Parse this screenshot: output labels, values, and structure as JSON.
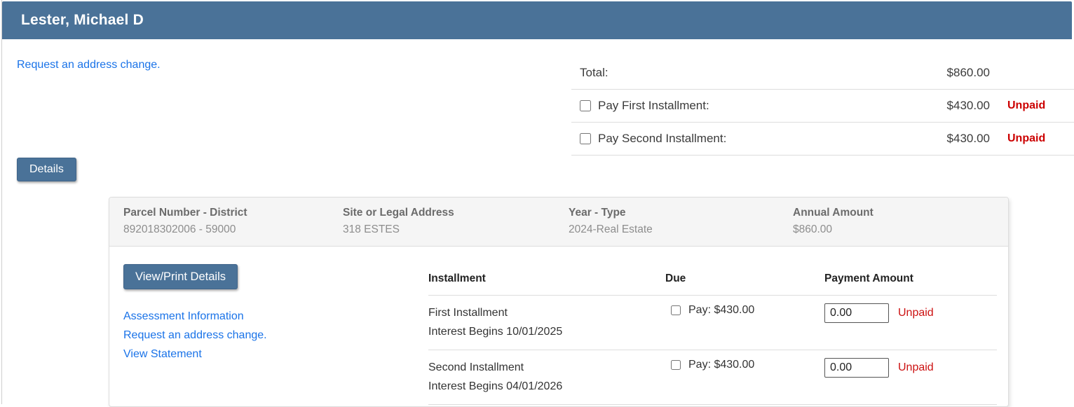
{
  "page": {
    "title": "Lester, Michael D",
    "address_change_link": "Request an address change.",
    "details_button": "Details"
  },
  "totals": {
    "rows": [
      {
        "label": "Total:",
        "amount": "$860.00",
        "status": ""
      },
      {
        "label": "Pay First Installment:",
        "amount": "$430.00",
        "status": "Unpaid",
        "checkbox_checked": false
      },
      {
        "label": "Pay Second Installment:",
        "amount": "$430.00",
        "status": "Unpaid",
        "checkbox_checked": false
      }
    ]
  },
  "parcel": {
    "columns": [
      {
        "label": "Parcel Number - District",
        "value": "892018302006 - 59000"
      },
      {
        "label": "Site or Legal Address",
        "value": "318 ESTES"
      },
      {
        "label": "Year - Type",
        "value": "2024-Real Estate"
      },
      {
        "label": "Annual Amount",
        "value": "$860.00"
      }
    ],
    "view_print_button": "View/Print Details",
    "links": [
      "Assessment Information",
      "Request an address change.",
      "View Statement"
    ]
  },
  "installments": {
    "headers": [
      "Installment",
      "Due",
      "Payment Amount"
    ],
    "rows": [
      {
        "name": "First Installment",
        "interest": "Interest Begins 10/01/2025",
        "due": "Pay: $430.00",
        "payment_value": "0.00",
        "status": "Unpaid",
        "checkbox_checked": false
      },
      {
        "name": "Second Installment",
        "interest": "Interest Begins 04/01/2026",
        "due": "Pay: $430.00",
        "payment_value": "0.00",
        "status": "Unpaid",
        "checkbox_checked": false
      }
    ]
  },
  "colors": {
    "header_bar": "#4a7298",
    "button": "#4a7298",
    "link": "#1a73e8",
    "unpaid_red": "#cc0000",
    "card_header_bg": "#f5f5f5",
    "border": "#dddddd"
  }
}
